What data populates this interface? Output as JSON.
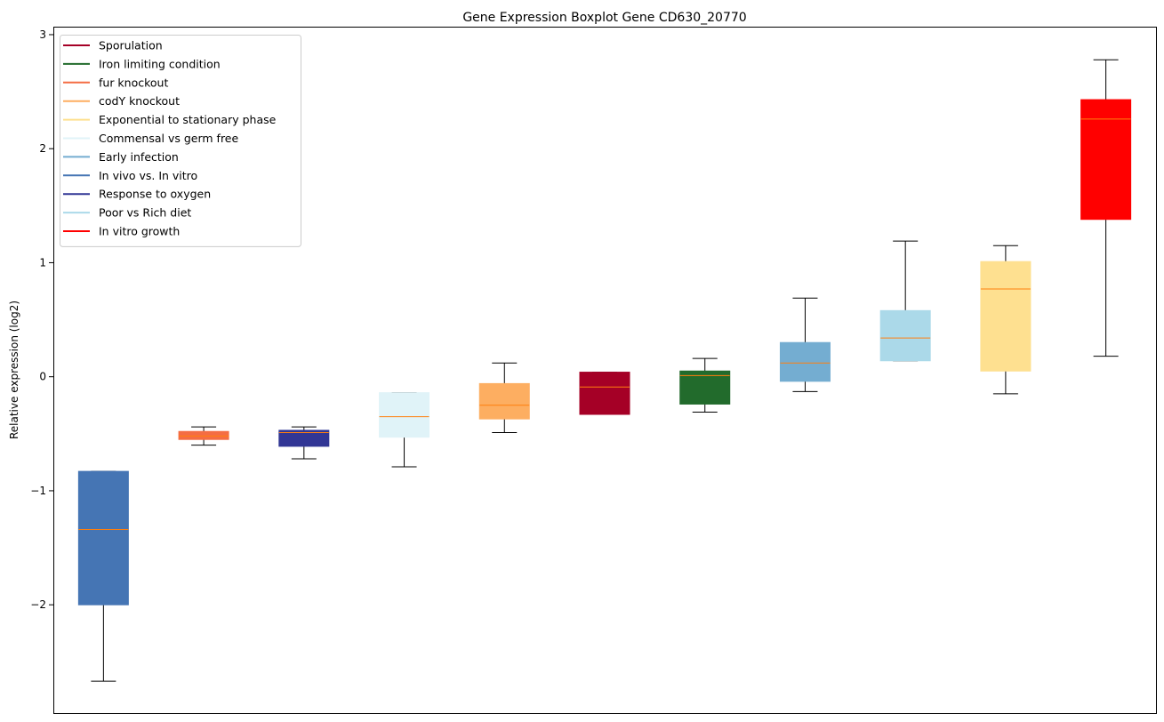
{
  "chart_data": {
    "type": "boxplot",
    "title": "Gene Expression Boxplot Gene CD630_20770",
    "xlabel": "",
    "ylabel": "Relative expression (log2)",
    "ylim": [
      -2.95,
      3.07
    ],
    "yticks": [
      -2,
      -1,
      0,
      1,
      2,
      3
    ],
    "ytick_labels": [
      "−2",
      "−1",
      "0",
      "1",
      "2",
      "3"
    ],
    "grid": false,
    "legend_placement": "top-left",
    "median_color": "#ff7f0e",
    "boxes": [
      {
        "name": "In vivo vs. In vitro",
        "color": "#4575b4",
        "whislo": -2.67,
        "q1": -2.0,
        "med": -1.34,
        "q3": -0.83,
        "whishi": -0.83
      },
      {
        "name": "fur knockout",
        "color": "#f46d43",
        "whislo": -0.6,
        "q1": -0.55,
        "med": -0.52,
        "q3": -0.48,
        "whishi": -0.44
      },
      {
        "name": "Response to oxygen",
        "color": "#313695",
        "whislo": -0.72,
        "q1": -0.61,
        "med": -0.49,
        "q3": -0.47,
        "whishi": -0.44
      },
      {
        "name": "Commensal vs germ free",
        "color": "#e0f3f8",
        "whislo": -0.79,
        "q1": -0.53,
        "med": -0.35,
        "q3": -0.14,
        "whishi": -0.14
      },
      {
        "name": "codY knockout",
        "color": "#fdae61",
        "whislo": -0.49,
        "q1": -0.37,
        "med": -0.25,
        "q3": -0.06,
        "whishi": 0.12
      },
      {
        "name": "Sporulation",
        "color": "#a50026",
        "whislo": -0.33,
        "q1": -0.33,
        "med": -0.09,
        "q3": 0.04,
        "whishi": 0.04
      },
      {
        "name": "Iron limiting condition",
        "color": "#226b2c",
        "whislo": -0.31,
        "q1": -0.24,
        "med": 0.01,
        "q3": 0.05,
        "whishi": 0.16
      },
      {
        "name": "Early infection",
        "color": "#74add1",
        "whislo": -0.13,
        "q1": -0.04,
        "med": 0.12,
        "q3": 0.3,
        "whishi": 0.69
      },
      {
        "name": "Poor vs Rich diet",
        "color": "#abd9e9",
        "whislo": 0.14,
        "q1": 0.14,
        "med": 0.34,
        "q3": 0.58,
        "whishi": 1.19
      },
      {
        "name": "Exponential to stationary phase",
        "color": "#fee090",
        "whislo": -0.15,
        "q1": 0.05,
        "med": 0.77,
        "q3": 1.01,
        "whishi": 1.15
      },
      {
        "name": "In vitro growth",
        "color": "#ff0000",
        "whislo": 0.18,
        "q1": 1.38,
        "med": 2.26,
        "q3": 2.43,
        "whishi": 2.78
      }
    ],
    "legend": [
      {
        "label": "Sporulation",
        "color": "#a50026"
      },
      {
        "label": "Iron limiting condition",
        "color": "#226b2c"
      },
      {
        "label": "fur knockout",
        "color": "#f46d43"
      },
      {
        "label": "codY knockout",
        "color": "#fdae61"
      },
      {
        "label": "Exponential to stationary phase",
        "color": "#fee090"
      },
      {
        "label": "Commensal vs germ free",
        "color": "#e0f3f8"
      },
      {
        "label": "Early infection",
        "color": "#74add1"
      },
      {
        "label": "In vivo vs. In vitro",
        "color": "#4575b4"
      },
      {
        "label": "Response to oxygen",
        "color": "#313695"
      },
      {
        "label": "Poor vs Rich diet",
        "color": "#abd9e9"
      },
      {
        "label": "In vitro growth",
        "color": "#ff0000"
      }
    ]
  }
}
